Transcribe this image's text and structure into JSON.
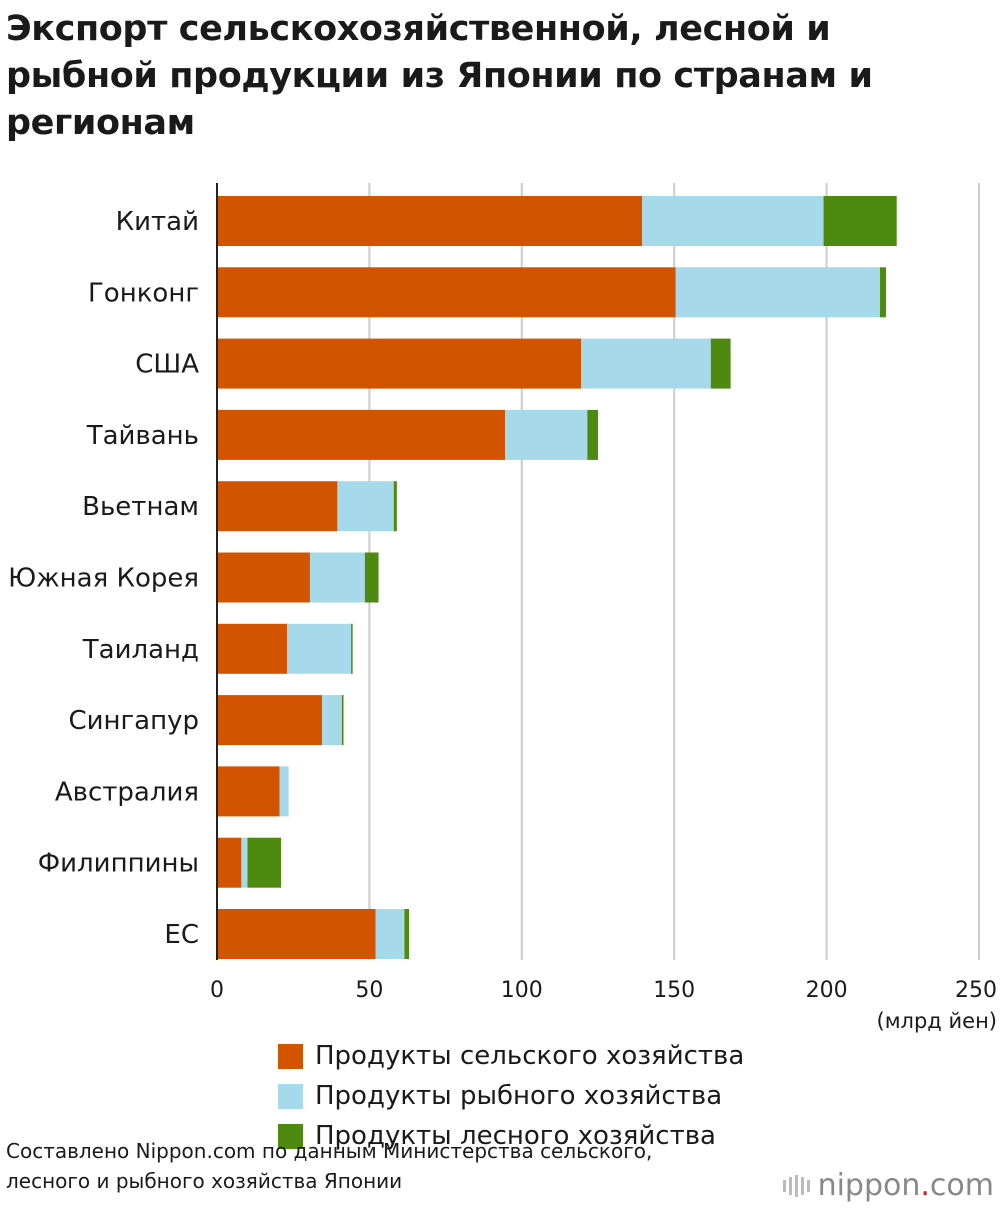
{
  "title": "Экспорт сельскохозяйственной, лесной и рыбной продукции из Японии по странам и регионам",
  "colors": {
    "agriculture": "#d35400",
    "fishery": "#a6d9ea",
    "forestry": "#4e8a10",
    "grid": "#cccccc",
    "axis": "#222222"
  },
  "chart_data": {
    "type": "bar",
    "orientation": "horizontal",
    "stacked": true,
    "categories": [
      "Китай",
      "Гонконг",
      "США",
      "Тайвань",
      "Вьетнам",
      "Южная Корея",
      "Таиланд",
      "Сингапур",
      "Австралия",
      "Филиппины",
      "ЕС"
    ],
    "series": [
      {
        "name": "Продукты сельского хозяйства",
        "color": "#d35400",
        "values": [
          139.5,
          150.5,
          119.5,
          94.5,
          39.5,
          30.5,
          23,
          34.5,
          20.5,
          8,
          52
        ]
      },
      {
        "name": "Продукты рыбного хозяйства",
        "color": "#a6d9ea",
        "values": [
          59.5,
          67,
          42.5,
          27,
          18.5,
          18,
          21,
          6.5,
          3,
          2,
          9.5
        ]
      },
      {
        "name": "Продукты лесного хозяйства",
        "color": "#4e8a10",
        "values": [
          24,
          2,
          6.5,
          3.5,
          1,
          4.5,
          0.5,
          0.5,
          0,
          11,
          1.5
        ]
      }
    ],
    "xlim": [
      0,
      250
    ],
    "xticks": [
      0,
      50,
      100,
      150,
      200,
      250
    ],
    "xlabel": "(млрд йен)",
    "grid": true,
    "legend_position": "bottom"
  },
  "legend": [
    {
      "label": "Продукты сельского хозяйства",
      "color": "#d35400"
    },
    {
      "label": "Продукты рыбного хозяйства",
      "color": "#a6d9ea"
    },
    {
      "label": "Продукты лесного хозяйства",
      "color": "#4e8a10"
    }
  ],
  "source": "Составлено Nippon.com по данным Министерства сельского, лесного и рыбного хозяйства Японии",
  "brand": {
    "name": "nippon",
    "dot": ".",
    "tld": "com",
    "logo_icon": "nippon-logo-icon"
  }
}
